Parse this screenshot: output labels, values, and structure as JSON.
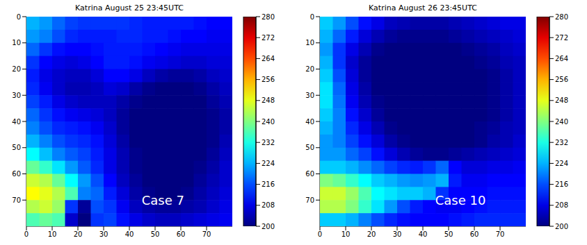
{
  "chart_data": [
    {
      "type": "heatmap",
      "title": "Katrina August 25 23:45UTC",
      "xlim": [
        0,
        80
      ],
      "ylim": [
        0,
        80
      ],
      "xticks": [
        0,
        10,
        20,
        30,
        40,
        50,
        60,
        70
      ],
      "yticks": [
        0,
        10,
        20,
        30,
        40,
        50,
        60,
        70
      ],
      "annotations": [
        "Case 7"
      ],
      "colorbar": {
        "range": [
          200,
          280
        ],
        "ticks": [
          200,
          208,
          216,
          224,
          232,
          240,
          248,
          256,
          264,
          272,
          280
        ]
      },
      "cells": [
        [
          224,
          222,
          218,
          215,
          214,
          214,
          214,
          214,
          213,
          212,
          212,
          212,
          212,
          211,
          210,
          210
        ],
        [
          222,
          220,
          216,
          213,
          212,
          212,
          212,
          213,
          213,
          212,
          212,
          211,
          210,
          210,
          209,
          209
        ],
        [
          218,
          214,
          211,
          210,
          210,
          211,
          212,
          212,
          212,
          211,
          210,
          209,
          208,
          208,
          208,
          208
        ],
        [
          214,
          210,
          208,
          207,
          208,
          210,
          212,
          212,
          211,
          209,
          208,
          207,
          206,
          206,
          207,
          207
        ],
        [
          212,
          208,
          206,
          205,
          205,
          207,
          210,
          210,
          208,
          205,
          203,
          202,
          202,
          203,
          205,
          206
        ],
        [
          213,
          209,
          206,
          204,
          204,
          205,
          207,
          206,
          203,
          201,
          200,
          200,
          200,
          201,
          203,
          205
        ],
        [
          215,
          212,
          208,
          206,
          205,
          205,
          205,
          203,
          201,
          200,
          200,
          200,
          200,
          200,
          202,
          204
        ],
        [
          218,
          214,
          211,
          209,
          208,
          207,
          205,
          202,
          200,
          200,
          200,
          200,
          200,
          200,
          201,
          203
        ],
        [
          220,
          216,
          213,
          212,
          211,
          209,
          206,
          202,
          200,
          200,
          200,
          200,
          200,
          200,
          201,
          203
        ],
        [
          224,
          220,
          216,
          214,
          213,
          211,
          207,
          203,
          200,
          200,
          200,
          200,
          200,
          200,
          201,
          204
        ],
        [
          230,
          225,
          220,
          217,
          215,
          212,
          208,
          204,
          201,
          200,
          200,
          200,
          200,
          200,
          202,
          205
        ],
        [
          238,
          234,
          228,
          222,
          217,
          213,
          208,
          204,
          201,
          200,
          200,
          200,
          200,
          201,
          203,
          206
        ],
        [
          246,
          244,
          238,
          230,
          222,
          216,
          210,
          205,
          202,
          200,
          200,
          200,
          200,
          202,
          204,
          206
        ],
        [
          250,
          248,
          244,
          236,
          220,
          218,
          212,
          207,
          203,
          201,
          200,
          200,
          201,
          203,
          205,
          207
        ],
        [
          244,
          246,
          242,
          214,
          202,
          216,
          214,
          209,
          205,
          203,
          202,
          202,
          203,
          204,
          206,
          208
        ],
        [
          236,
          238,
          236,
          206,
          200,
          214,
          215,
          211,
          208,
          206,
          205,
          205,
          206,
          207,
          208,
          209
        ]
      ]
    },
    {
      "type": "heatmap",
      "title": "Katrina August 26 23:45UTC",
      "xlim": [
        0,
        80
      ],
      "ylim": [
        0,
        80
      ],
      "xticks": [
        0,
        10,
        20,
        30,
        40,
        50,
        60,
        70
      ],
      "yticks": [
        0,
        10,
        20,
        30,
        40,
        50,
        60,
        70
      ],
      "annotations": [
        "Case 10"
      ],
      "colorbar": {
        "range": [
          200,
          280
        ],
        "ticks": [
          200,
          208,
          216,
          224,
          232,
          240,
          248,
          256,
          264,
          272,
          280
        ]
      },
      "cells": [
        [
          226,
          222,
          216,
          211,
          208,
          205,
          204,
          203,
          203,
          203,
          204,
          205,
          206,
          207,
          208,
          208
        ],
        [
          224,
          218,
          212,
          207,
          204,
          202,
          201,
          201,
          201,
          201,
          202,
          203,
          204,
          205,
          206,
          207
        ],
        [
          222,
          214,
          208,
          204,
          201,
          200,
          200,
          200,
          200,
          200,
          200,
          201,
          202,
          203,
          205,
          206
        ],
        [
          224,
          214,
          206,
          202,
          200,
          200,
          200,
          200,
          200,
          200,
          200,
          200,
          201,
          202,
          204,
          205
        ],
        [
          226,
          216,
          207,
          202,
          200,
          200,
          200,
          200,
          200,
          200,
          200,
          200,
          200,
          201,
          203,
          205
        ],
        [
          228,
          218,
          208,
          203,
          200,
          200,
          200,
          200,
          200,
          200,
          200,
          200,
          200,
          201,
          203,
          205
        ],
        [
          228,
          219,
          209,
          204,
          201,
          200,
          200,
          200,
          200,
          200,
          200,
          200,
          200,
          201,
          203,
          205
        ],
        [
          226,
          220,
          211,
          206,
          202,
          200,
          200,
          200,
          200,
          200,
          200,
          200,
          200,
          201,
          203,
          205
        ],
        [
          224,
          220,
          213,
          208,
          204,
          201,
          200,
          200,
          200,
          200,
          200,
          200,
          201,
          202,
          204,
          205
        ],
        [
          222,
          220,
          215,
          211,
          207,
          203,
          201,
          200,
          200,
          200,
          200,
          200,
          201,
          203,
          204,
          206
        ],
        [
          222,
          222,
          218,
          215,
          211,
          207,
          204,
          202,
          201,
          201,
          202,
          203,
          204,
          205,
          206,
          207
        ],
        [
          226,
          226,
          224,
          221,
          218,
          215,
          213,
          212,
          214,
          218,
          210,
          207,
          207,
          208,
          208,
          209
        ],
        [
          240,
          238,
          234,
          230,
          226,
          224,
          222,
          221,
          222,
          224,
          212,
          209,
          209,
          210,
          210,
          210
        ],
        [
          246,
          246,
          242,
          236,
          230,
          228,
          226,
          226,
          224,
          214,
          210,
          210,
          210,
          211,
          211,
          211
        ],
        [
          244,
          244,
          240,
          234,
          228,
          222,
          216,
          212,
          210,
          209,
          209,
          210,
          211,
          212,
          212,
          212
        ],
        [
          226,
          226,
          224,
          220,
          216,
          213,
          211,
          210,
          210,
          210,
          211,
          212,
          213,
          213,
          213,
          213
        ]
      ]
    }
  ]
}
